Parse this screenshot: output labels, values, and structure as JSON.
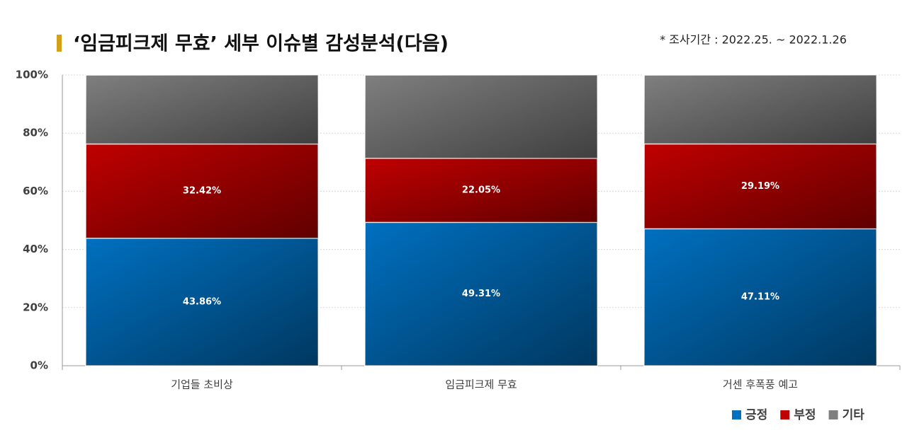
{
  "chart_data": {
    "type": "stacked_bar",
    "title": "‘임금피크제 무효’ 세부 이슈별 감성분석(다음)",
    "subtitle": "* 조사기간 : 2022.25. ~ 2022.1.26",
    "categories": [
      "기업들 초비상",
      "임금피크제 무효",
      "거센 후폭풍 예고"
    ],
    "series": [
      {
        "name": "긍정",
        "color": "#0070c0",
        "values": [
          43.86,
          49.31,
          47.11
        ],
        "value_labels": [
          "43.86%",
          "49.31%",
          "47.11%"
        ]
      },
      {
        "name": "부정",
        "color": "#c00000",
        "values": [
          32.42,
          22.05,
          29.19
        ],
        "value_labels": [
          "32.42%",
          "22.05%",
          "29.19%"
        ]
      },
      {
        "name": "기타",
        "color": "#7f7f7f",
        "values": [
          23.72,
          28.64,
          23.7
        ]
      }
    ],
    "ylim": [
      0,
      100
    ],
    "yticks": [
      {
        "value": 0,
        "label": "0%"
      },
      {
        "value": 20,
        "label": "20%"
      },
      {
        "value": 40,
        "label": "40%"
      },
      {
        "value": 60,
        "label": "60%"
      },
      {
        "value": 80,
        "label": "80%"
      },
      {
        "value": 100,
        "label": "100%"
      }
    ],
    "grid": true,
    "legend": "bottom-right"
  }
}
